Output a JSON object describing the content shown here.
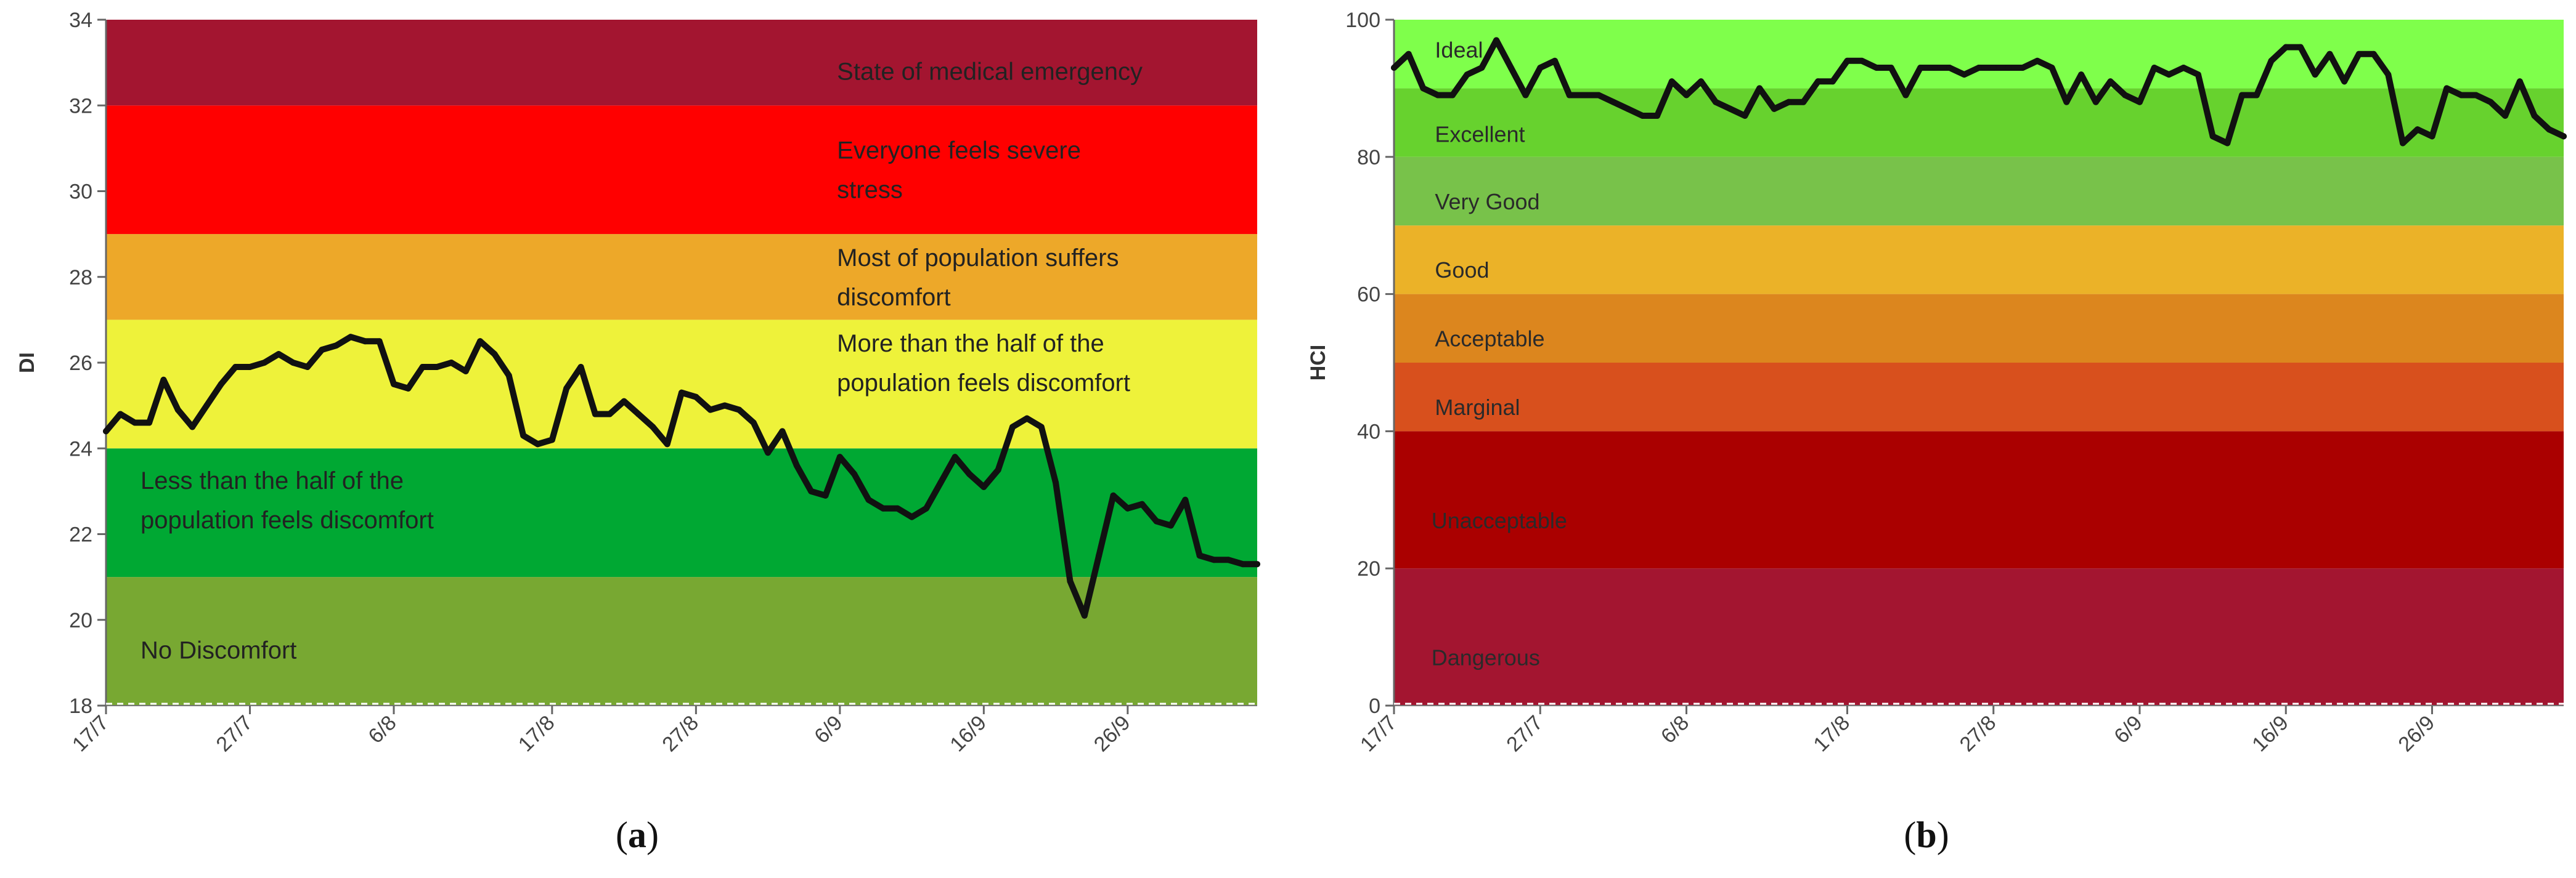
{
  "chart_data": [
    {
      "type": "line",
      "panel": "(a)",
      "panel_letter": "a",
      "ylabel": "DI",
      "xlabel": "",
      "ylim": [
        18,
        34
      ],
      "yticks": [
        18,
        20,
        22,
        24,
        26,
        28,
        30,
        32,
        34
      ],
      "x_tick_labels": [
        "17/7",
        "27/7",
        "6/8",
        "17/8",
        "27/8",
        "6/9",
        "16/9",
        "26/9"
      ],
      "x_tick_days": [
        0,
        10,
        20,
        31,
        41,
        51,
        61,
        71
      ],
      "x_range_days": [
        0,
        80
      ],
      "baseline": {
        "value": 18,
        "style": "dashed",
        "color": "#ffffff"
      },
      "bands": [
        {
          "from": 18,
          "to": 21,
          "color": "#78A832",
          "label_lines": [
            "No Discomfort"
          ],
          "label_y": 19.3,
          "label_x_frac": 0.03
        },
        {
          "from": 21,
          "to": 24,
          "color": "#00A833",
          "label_lines": [
            "Less than the half of the",
            "population feels discomfort"
          ],
          "label_y": 22.8,
          "label_x_frac": 0.03
        },
        {
          "from": 24,
          "to": 27,
          "color": "#EEF23A",
          "label_lines": [
            "More than the half of the",
            "population feels discomfort"
          ],
          "label_y": 26.0,
          "label_x_frac": 0.635
        },
        {
          "from": 27,
          "to": 29,
          "color": "#EDA829",
          "label_lines": [
            "Most of population suffers",
            "discomfort"
          ],
          "label_y": 28.0,
          "label_x_frac": 0.635
        },
        {
          "from": 29,
          "to": 32,
          "color": "#FF0000",
          "label_lines": [
            "Everyone feels severe",
            "stress"
          ],
          "label_y": 30.5,
          "label_x_frac": 0.635
        },
        {
          "from": 32,
          "to": 34,
          "color": "#A31530",
          "label_lines": [
            "State of medical emergency"
          ],
          "label_y": 32.8,
          "label_x_frac": 0.635
        }
      ],
      "series": [
        {
          "name": "DI",
          "color": "#111111",
          "x": [
            0,
            1,
            2,
            3,
            4,
            5,
            6,
            7,
            8,
            9,
            10,
            11,
            12,
            13,
            14,
            15,
            16,
            17,
            18,
            19,
            20,
            21,
            22,
            23,
            24,
            25,
            26,
            27,
            28,
            29,
            30,
            31,
            32,
            33,
            34,
            35,
            36,
            37,
            38,
            39,
            40,
            41,
            42,
            43,
            44,
            45,
            46,
            47,
            48,
            49,
            50,
            51,
            52,
            53,
            54,
            55,
            56,
            57,
            58,
            59,
            60,
            61,
            62,
            63,
            64,
            65,
            66,
            67,
            68,
            69,
            70,
            71,
            72,
            73,
            74,
            75,
            76,
            77,
            78,
            79,
            80
          ],
          "values": [
            24.4,
            24.8,
            24.6,
            24.6,
            25.6,
            24.9,
            24.5,
            25.0,
            25.5,
            25.9,
            25.9,
            26.0,
            26.2,
            26.0,
            25.9,
            26.3,
            26.4,
            26.6,
            26.5,
            26.5,
            25.5,
            25.4,
            25.9,
            25.9,
            26.0,
            25.8,
            26.5,
            26.2,
            25.7,
            24.3,
            24.1,
            24.2,
            25.4,
            25.9,
            24.8,
            24.8,
            25.1,
            24.8,
            24.5,
            24.1,
            25.3,
            25.2,
            24.9,
            25.0,
            24.9,
            24.6,
            23.9,
            24.4,
            23.6,
            23.0,
            22.9,
            23.8,
            23.4,
            22.8,
            22.6,
            22.6,
            22.4,
            22.6,
            23.2,
            23.8,
            23.4,
            23.1,
            23.5,
            24.5,
            24.7,
            24.5,
            23.2,
            20.9,
            20.1,
            21.5,
            22.9,
            22.6,
            22.7,
            22.3,
            22.2,
            22.8,
            21.5,
            21.4,
            21.4,
            21.3,
            21.3
          ]
        }
      ]
    },
    {
      "type": "line",
      "panel": "(b)",
      "panel_letter": "b",
      "ylabel": "HCI",
      "xlabel": "",
      "ylim": [
        0,
        100
      ],
      "yticks": [
        0,
        20,
        40,
        60,
        80,
        100
      ],
      "x_tick_labels": [
        "17/7",
        "27/7",
        "6/8",
        "17/8",
        "27/8",
        "6/9",
        "16/9",
        "26/9"
      ],
      "x_tick_days": [
        0,
        10,
        20,
        31,
        41,
        51,
        61,
        71
      ],
      "x_range_days": [
        0,
        80
      ],
      "baseline": {
        "value": 0,
        "style": "dashed",
        "color": "#ffffff"
      },
      "bands": [
        {
          "from": 0,
          "to": 20,
          "color": "#A31530",
          "label_lines": [
            "Dangerous"
          ],
          "label_y": 7,
          "label_x_frac": 0.032
        },
        {
          "from": 20,
          "to": 40,
          "color": "#AA0000",
          "label_lines": [
            "Unacceptable"
          ],
          "label_y": 27,
          "label_x_frac": 0.032
        },
        {
          "from": 40,
          "to": 50,
          "color": "#D8501D",
          "label_lines": [
            "Marginal"
          ],
          "label_y": 43.5,
          "label_x_frac": 0.035
        },
        {
          "from": 50,
          "to": 60,
          "color": "#DC861E",
          "label_lines": [
            "Acceptable"
          ],
          "label_y": 53.5,
          "label_x_frac": 0.035
        },
        {
          "from": 60,
          "to": 70,
          "color": "#EBB228",
          "label_lines": [
            "Good"
          ],
          "label_y": 63.5,
          "label_x_frac": 0.035
        },
        {
          "from": 70,
          "to": 80,
          "color": "#78C24A",
          "label_lines": [
            "Very Good"
          ],
          "label_y": 73.5,
          "label_x_frac": 0.035
        },
        {
          "from": 80,
          "to": 90,
          "color": "#67D22E",
          "label_lines": [
            "Excellent"
          ],
          "label_y": 83.3,
          "label_x_frac": 0.035
        },
        {
          "from": 90,
          "to": 100,
          "color": "#7FFF4B",
          "label_lines": [
            "Ideal"
          ],
          "label_y": 95.6,
          "label_x_frac": 0.035
        }
      ],
      "series": [
        {
          "name": "HCI",
          "color": "#111111",
          "x": [
            0,
            1,
            2,
            3,
            4,
            5,
            6,
            7,
            8,
            9,
            10,
            11,
            12,
            13,
            14,
            15,
            16,
            17,
            18,
            19,
            20,
            21,
            22,
            23,
            24,
            25,
            26,
            27,
            28,
            29,
            30,
            31,
            32,
            33,
            34,
            35,
            36,
            37,
            38,
            39,
            40,
            41,
            42,
            43,
            44,
            45,
            46,
            47,
            48,
            49,
            50,
            51,
            52,
            53,
            54,
            55,
            56,
            57,
            58,
            59,
            60,
            61,
            62,
            63,
            64,
            65,
            66,
            67,
            68,
            69,
            70,
            71,
            72,
            73,
            74,
            75,
            76,
            77,
            78,
            79,
            80
          ],
          "values": [
            93,
            95,
            90,
            89,
            89,
            92,
            93,
            97,
            93,
            89,
            93,
            94,
            89,
            89,
            89,
            88,
            87,
            86,
            86,
            91,
            89,
            91,
            88,
            87,
            86,
            90,
            87,
            88,
            88,
            91,
            91,
            94,
            94,
            93,
            93,
            89,
            93,
            93,
            93,
            92,
            93,
            93,
            93,
            93,
            94,
            93,
            88,
            92,
            88,
            91,
            89,
            88,
            93,
            92,
            93,
            92,
            83,
            82,
            89,
            89,
            94,
            96,
            96,
            92,
            95,
            91,
            95,
            95,
            92,
            82,
            84,
            83,
            90,
            89,
            89,
            88,
            86,
            91,
            86,
            84,
            83
          ]
        }
      ]
    }
  ]
}
